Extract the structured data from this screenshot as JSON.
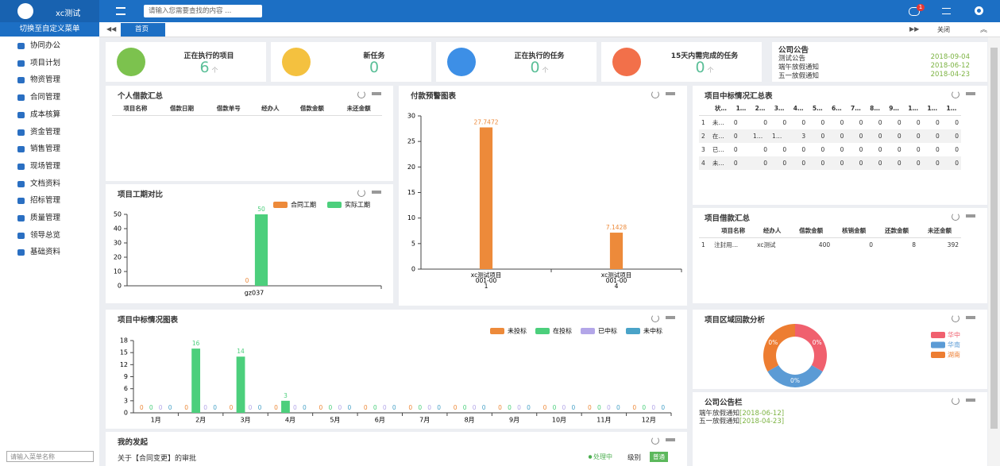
{
  "header": {
    "logo": "xc测试",
    "search": "请输入您需要查找的内容 ...",
    "badge": "1"
  },
  "sidebar": {
    "switch": "切换至自定义菜单",
    "menu": [
      "协同办公",
      "项目计划",
      "物资管理",
      "合同管理",
      "成本核算",
      "资金管理",
      "销售管理",
      "现场管理",
      "文档资料",
      "招标管理",
      "质量管理",
      "领导总览",
      "基础资料"
    ],
    "search": "请输入菜单名称"
  },
  "tabs": {
    "home": "首页",
    "close": "关闭"
  },
  "cards": [
    {
      "label": "正在执行的项目",
      "value": 6,
      "unit": "个"
    },
    {
      "label": "新任务",
      "value": 0
    },
    {
      "label": "正在执行的任务",
      "value": 0,
      "unit": "个"
    },
    {
      "label": "15天内需完成的任务",
      "value": 0,
      "unit": "个"
    }
  ],
  "notice": {
    "title": "公司公告",
    "items": [
      {
        "text": "测试公告",
        "date": "2018-09-04"
      },
      {
        "text": "端午放假通知",
        "date": "2018-06-12"
      },
      {
        "text": "五一放假通知",
        "date": "2018-04-23"
      }
    ]
  },
  "loan_personal": {
    "title": "个人借款汇总",
    "columns": [
      "项目名称",
      "借款日期",
      "借款单号",
      "经办人",
      "借款金额",
      "未还金额"
    ]
  },
  "duration_chart": {
    "type": "bar",
    "title": "项目工期对比",
    "categories": [
      "gz037"
    ],
    "series": [
      {
        "name": "合同工期",
        "color": "#ed8a3a",
        "values": [
          0
        ]
      },
      {
        "name": "实际工期",
        "color": "#4ccf7c",
        "values": [
          50
        ]
      }
    ],
    "ylim": [
      0,
      50
    ],
    "yticks": [
      0,
      10,
      20,
      30,
      40,
      50
    ]
  },
  "payment_chart": {
    "type": "bar",
    "title": "付款预警图表",
    "categories": [
      [
        "xc测试项目",
        "001-00",
        "1"
      ],
      [
        "xc测试项目",
        "001-00",
        "4"
      ]
    ],
    "values": [
      27.7472,
      7.1428
    ],
    "color": "#ed8a3a",
    "ylim": [
      0,
      30
    ],
    "yticks": [
      0,
      5,
      10,
      15,
      20,
      25,
      30
    ]
  },
  "bid_table": {
    "title": "项目中标情况汇总表",
    "columns": [
      "状…",
      "1…",
      "2…",
      "3…",
      "4…",
      "5…",
      "6…",
      "7…",
      "8…",
      "9…",
      "1…",
      "1…",
      "1…"
    ],
    "rows": [
      [
        1,
        "未…",
        0,
        0,
        0,
        0,
        0,
        0,
        0,
        0,
        0,
        0,
        0,
        0
      ],
      [
        2,
        "在…",
        0,
        "1…",
        "1…",
        3,
        0,
        0,
        0,
        0,
        0,
        0,
        0,
        0
      ],
      [
        3,
        "已…",
        0,
        0,
        0,
        0,
        0,
        0,
        0,
        0,
        0,
        0,
        0,
        0
      ],
      [
        4,
        "未…",
        0,
        0,
        0,
        0,
        0,
        0,
        0,
        0,
        0,
        0,
        0,
        0
      ]
    ]
  },
  "loan_project": {
    "title": "项目借款汇总",
    "columns": [
      "项目名称",
      "经办人",
      "借款金额",
      "核销金额",
      "还款金额",
      "未还金额"
    ],
    "rows": [
      [
        1,
        "注封用…",
        "xc测试",
        400,
        0,
        8,
        392
      ]
    ]
  },
  "bid_chart": {
    "type": "bar",
    "title": "项目中标情况图表",
    "categories": [
      "1月",
      "2月",
      "3月",
      "4月",
      "5月",
      "6月",
      "7月",
      "8月",
      "9月",
      "10月",
      "11月",
      "12月"
    ],
    "series": [
      {
        "name": "未投标",
        "color": "#ed8a3a",
        "values": [
          0,
          0,
          0,
          0,
          0,
          0,
          0,
          0,
          0,
          0,
          0,
          0
        ]
      },
      {
        "name": "在投标",
        "color": "#4ccf7c",
        "values": [
          0,
          16,
          14,
          3,
          0,
          0,
          0,
          0,
          0,
          0,
          0,
          0
        ]
      },
      {
        "name": "已中标",
        "color": "#b3a6e8",
        "values": [
          0,
          0,
          0,
          0,
          0,
          0,
          0,
          0,
          0,
          0,
          0,
          0
        ]
      },
      {
        "name": "未中标",
        "color": "#4aa3c8",
        "values": [
          0,
          0,
          0,
          0,
          0,
          0,
          0,
          0,
          0,
          0,
          0,
          0
        ]
      }
    ],
    "ylim": [
      0,
      18
    ],
    "yticks": [
      0,
      3,
      6,
      9,
      12,
      15,
      18
    ]
  },
  "region_chart": {
    "type": "pie",
    "title": "项目区域回款分析",
    "categories": [
      "华中",
      "华南",
      "湖南"
    ],
    "values": [
      0,
      0,
      0
    ],
    "value_labels": [
      "0%",
      "0%",
      "0%"
    ],
    "colors": [
      "#f0606e",
      "#5b9bd5",
      "#ed7d31"
    ]
  },
  "notice_board": {
    "title": "公司公告栏",
    "items": [
      {
        "text": "端午放假通知",
        "date": "[2018-06-12]"
      },
      {
        "text": "五一放假通知",
        "date": "[2018-04-23]"
      }
    ]
  },
  "my_requests": {
    "title": "我的发起",
    "items": [
      {
        "text": "关于【合同变更】的审批",
        "status": "处理中",
        "level_label": "级别",
        "level": "普通"
      }
    ]
  }
}
